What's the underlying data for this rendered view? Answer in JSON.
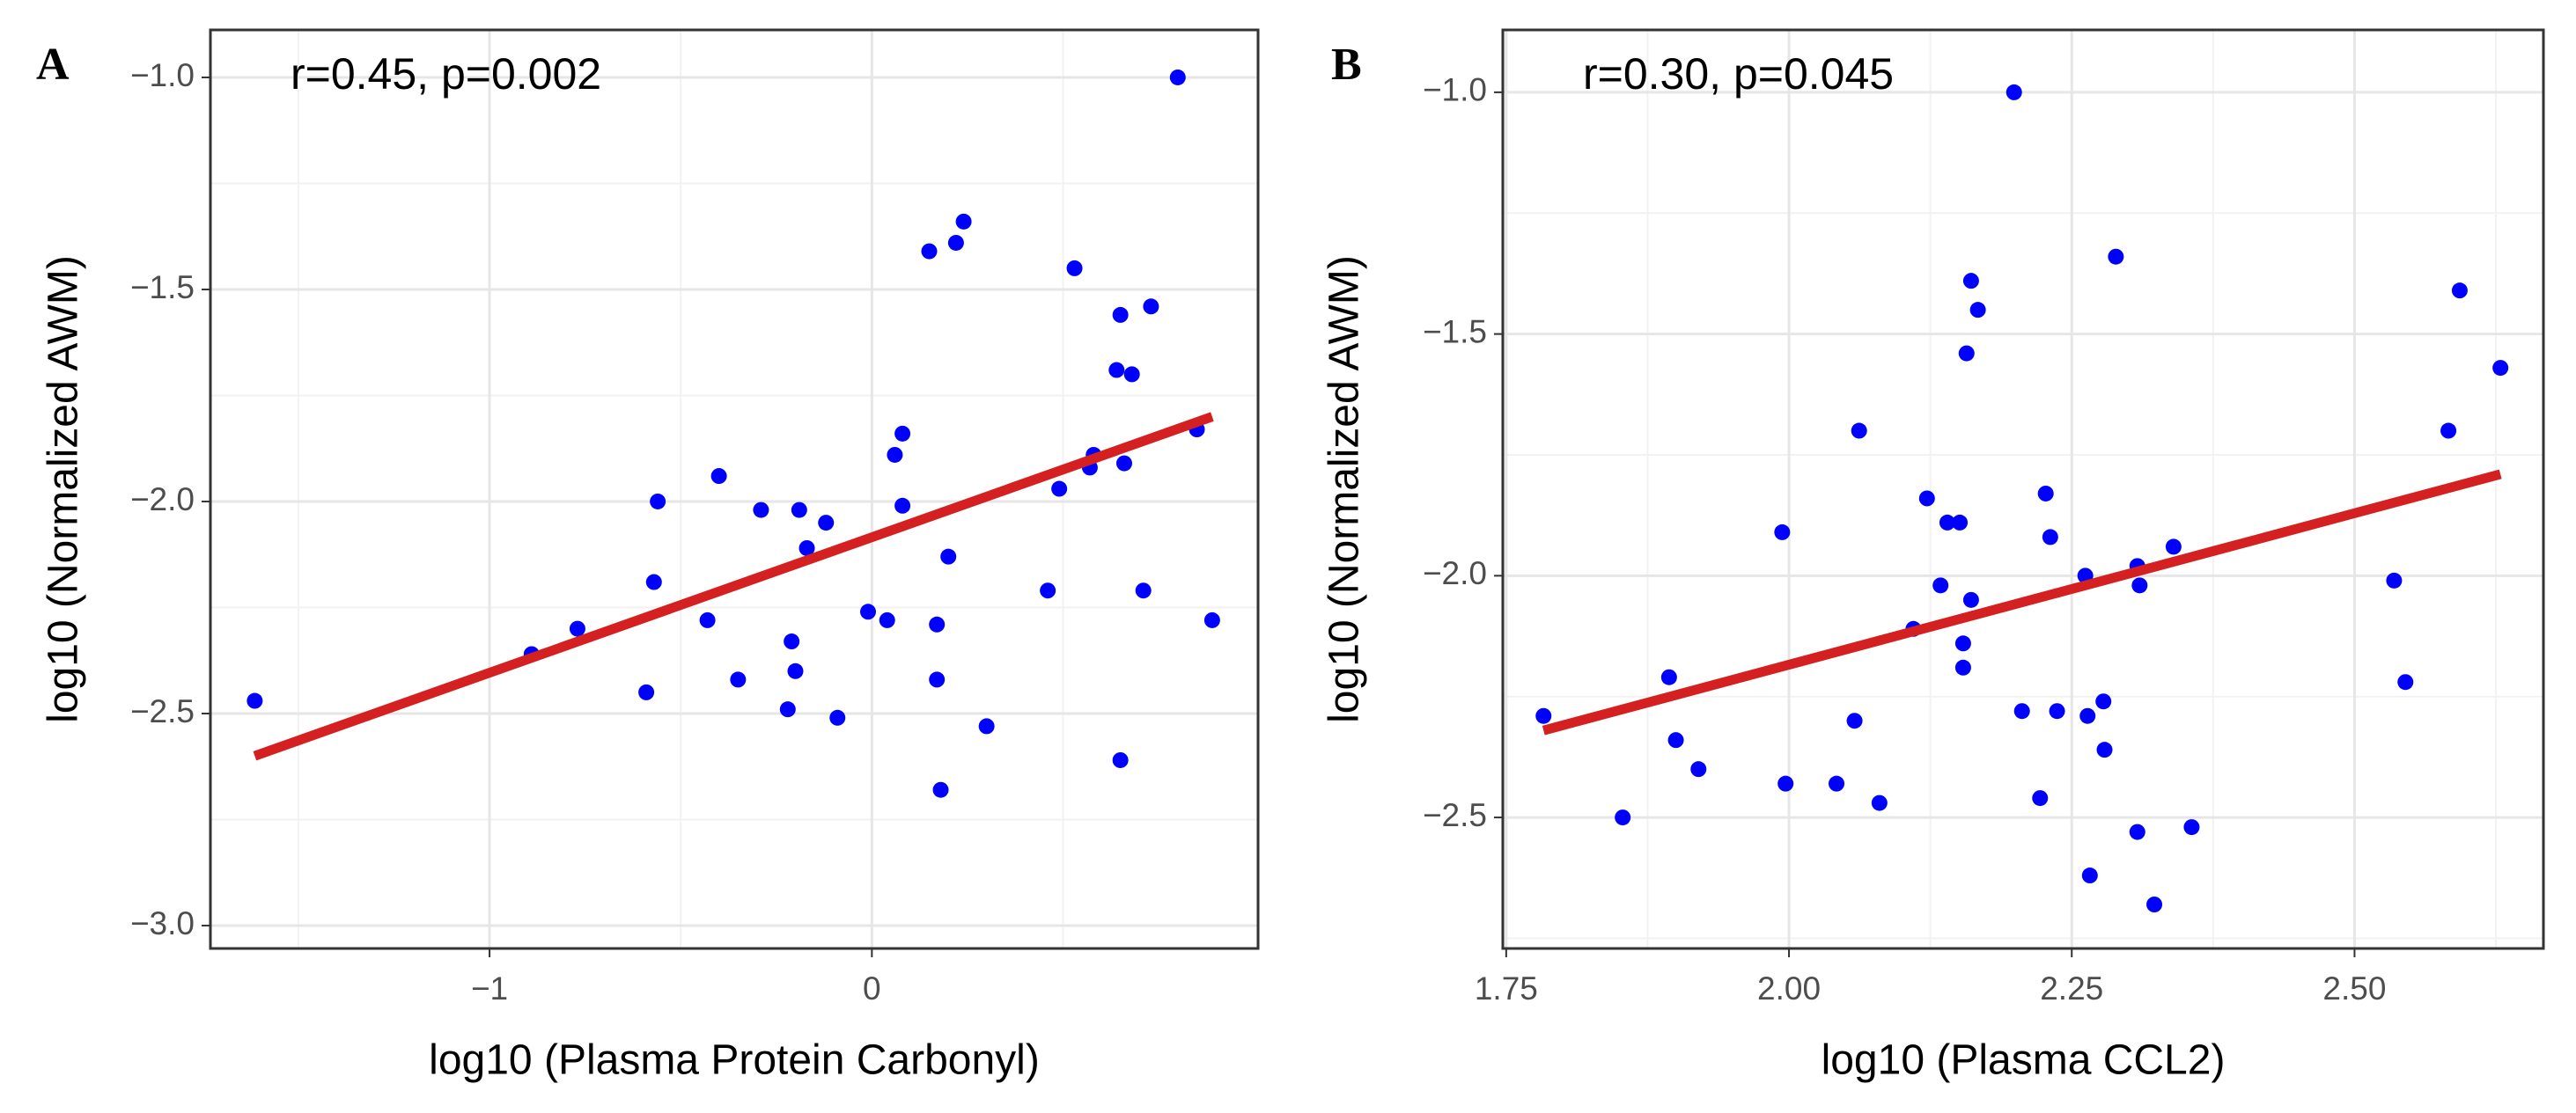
{
  "chart_data": [
    {
      "type": "scatter",
      "panel": "A",
      "annotation": "r=0.45, p=0.002",
      "x_label": "log10 (Plasma Protein Carbonyl)",
      "y_label": "log10 (Normalized AWM)",
      "xlim": [
        -1.73,
        1.01
      ],
      "ylim": [
        -3.054,
        -0.888
      ],
      "xticks": [
        {
          "value": -1,
          "label": "−1"
        },
        0
      ],
      "yticks": [
        {
          "value": -3.0,
          "label": "−3.0"
        },
        {
          "value": -2.5,
          "label": "−2.5"
        },
        {
          "value": -2.0,
          "label": "−2.0"
        },
        {
          "value": -1.5,
          "label": "−1.5"
        },
        {
          "value": -1.0,
          "label": "−1.0"
        }
      ],
      "grid": true,
      "color": "#0000ff",
      "x": [
        -1.614,
        -0.89,
        -0.77,
        -0.59,
        -0.56,
        -0.57,
        -0.4,
        -0.43,
        -0.35,
        -0.29,
        -0.19,
        -0.21,
        -0.2,
        -0.22,
        -0.17,
        -0.12,
        -0.09,
        -0.01,
        0.04,
        0.06,
        0.08,
        0.08,
        0.15,
        0.22,
        0.24,
        0.17,
        0.17,
        0.2,
        0.18,
        0.3,
        0.46,
        0.49,
        0.53,
        0.57,
        0.58,
        0.65,
        0.64,
        0.68,
        0.66,
        0.73,
        0.71,
        0.65,
        0.8,
        0.85,
        0.89
      ],
      "values": [
        -2.47,
        -2.36,
        -2.3,
        -2.45,
        -2.0,
        -2.19,
        -1.94,
        -2.28,
        -2.42,
        -2.02,
        -2.02,
        -2.33,
        -2.4,
        -2.49,
        -2.11,
        -2.05,
        -2.51,
        -2.26,
        -2.28,
        -1.89,
        -1.84,
        -2.01,
        -1.41,
        -1.39,
        -1.34,
        -2.29,
        -2.42,
        -2.13,
        -2.68,
        -2.53,
        -2.21,
        -1.97,
        -1.45,
        -1.92,
        -1.89,
        -1.56,
        -1.69,
        -1.7,
        -1.91,
        -1.54,
        -2.21,
        -2.61,
        -1.0,
        -1.83,
        -2.28
      ],
      "trendline": {
        "color": "#d42020",
        "x": [
          -1.614,
          0.89
        ],
        "values": [
          -2.6,
          -1.8
        ]
      }
    },
    {
      "type": "scatter",
      "panel": "B",
      "annotation": "r=0.30, p=0.045",
      "x_label": "log10 (Plasma CCL2)",
      "y_label": "log10 (Normalized AWM)",
      "xlim": [
        1.747,
        2.667
      ],
      "ylim": [
        -2.771,
        -0.871
      ],
      "xticks": [
        1.75,
        {
          "value": 2.0,
          "label": "2.00"
        },
        2.25,
        {
          "value": 2.5,
          "label": "2.50"
        }
      ],
      "yticks": [
        {
          "value": -2.5,
          "label": "−2.5"
        },
        {
          "value": -2.0,
          "label": "−2.0"
        },
        {
          "value": -1.5,
          "label": "−1.5"
        },
        {
          "value": -1.0,
          "label": "−1.0"
        }
      ],
      "grid": true,
      "color": "#0000ff",
      "x": [
        1.783,
        1.853,
        1.894,
        1.9,
        1.92,
        1.994,
        1.997,
        2.042,
        2.058,
        2.062,
        2.08,
        2.11,
        2.122,
        2.134,
        2.14,
        2.151,
        2.154,
        2.154,
        2.161,
        2.167,
        2.157,
        2.161,
        2.199,
        2.206,
        2.222,
        2.227,
        2.231,
        2.237,
        2.262,
        2.264,
        2.266,
        2.278,
        2.279,
        2.289,
        2.308,
        2.31,
        2.308,
        2.323,
        2.34,
        2.356,
        2.535,
        2.545,
        2.583,
        2.593,
        2.629
      ],
      "values": [
        -2.29,
        -2.5,
        -2.21,
        -2.34,
        -2.4,
        -1.91,
        -2.43,
        -2.43,
        -2.3,
        -1.7,
        -2.47,
        -2.11,
        -1.84,
        -2.02,
        -1.89,
        -1.89,
        -2.14,
        -2.19,
        -2.05,
        -1.45,
        -1.54,
        -1.39,
        -1.0,
        -2.28,
        -2.46,
        -1.83,
        -1.92,
        -2.28,
        -2.0,
        -2.29,
        -2.62,
        -2.26,
        -2.36,
        -1.34,
        -1.98,
        -2.02,
        -2.53,
        -2.68,
        -1.94,
        -2.52,
        -2.01,
        -2.22,
        -1.7,
        -1.41,
        -1.57
      ],
      "trendline": {
        "color": "#d42020",
        "x": [
          1.783,
          2.629
        ],
        "values": [
          -2.32,
          -1.79
        ]
      }
    }
  ]
}
